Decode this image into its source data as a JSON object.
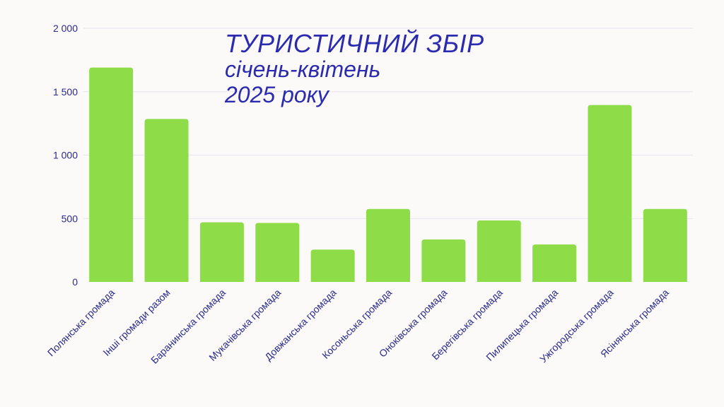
{
  "chart_data": {
    "type": "bar",
    "title": [
      "ТУРИСТИЧНИЙ ЗБІР",
      "січень-квітень",
      "2025 року"
    ],
    "categories": [
      "Полянська громада",
      "Інші громади разом",
      "Баранинська громада",
      "Мукачівська громада",
      "Довжанська громада",
      "Косоньська громада",
      "Оноківська громада",
      "Берегівська громада",
      "Пилипецька громада",
      "Ужгородська громада",
      "Ясінянська громада"
    ],
    "values": [
      1690,
      1285,
      470,
      465,
      255,
      575,
      335,
      485,
      295,
      1395,
      575
    ],
    "ylim": [
      0,
      2000
    ],
    "yticks": [
      0,
      500,
      1000,
      1500,
      2000
    ],
    "ytick_labels": [
      "0",
      "500",
      "1 000",
      "1 500",
      "2 000"
    ],
    "grid": true,
    "colors": {
      "bar": "#8ddc48",
      "text": "#2a2a8c",
      "title": "#2b2bb0",
      "grid": "#e6e4ee"
    }
  }
}
